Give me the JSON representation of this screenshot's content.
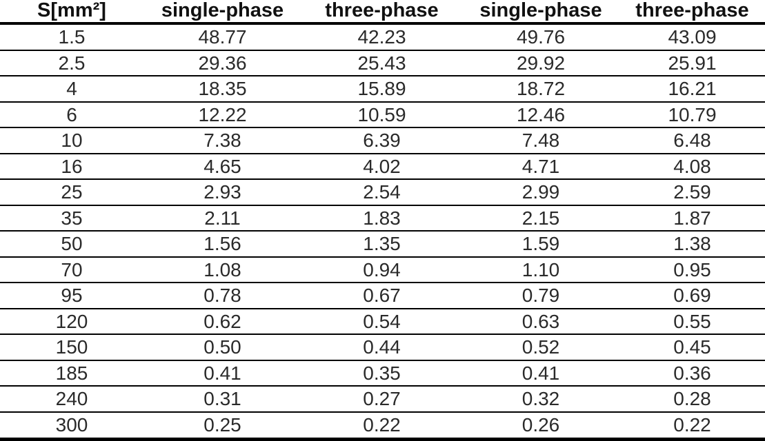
{
  "colors": {
    "background": "#ffffff",
    "text": "#2a2a2a",
    "header_text": "#111111",
    "rule": "#000000"
  },
  "chart_data": {
    "type": "table",
    "columns": [
      "S[mm²]",
      "single-phase",
      "three-phase",
      "single-phase",
      "three-phase"
    ],
    "rows": [
      [
        "1.5",
        "48.77",
        "42.23",
        "49.76",
        "43.09"
      ],
      [
        "2.5",
        "29.36",
        "25.43",
        "29.92",
        "25.91"
      ],
      [
        "4",
        "18.35",
        "15.89",
        "18.72",
        "16.21"
      ],
      [
        "6",
        "12.22",
        "10.59",
        "12.46",
        "10.79"
      ],
      [
        "10",
        "7.38",
        "6.39",
        "7.48",
        "6.48"
      ],
      [
        "16",
        "4.65",
        "4.02",
        "4.71",
        "4.08"
      ],
      [
        "25",
        "2.93",
        "2.54",
        "2.99",
        "2.59"
      ],
      [
        "35",
        "2.11",
        "1.83",
        "2.15",
        "1.87"
      ],
      [
        "50",
        "1.56",
        "1.35",
        "1.59",
        "1.38"
      ],
      [
        "70",
        "1.08",
        "0.94",
        "1.10",
        "0.95"
      ],
      [
        "95",
        "0.78",
        "0.67",
        "0.79",
        "0.69"
      ],
      [
        "120",
        "0.62",
        "0.54",
        "0.63",
        "0.55"
      ],
      [
        "150",
        "0.50",
        "0.44",
        "0.52",
        "0.45"
      ],
      [
        "185",
        "0.41",
        "0.35",
        "0.41",
        "0.36"
      ],
      [
        "240",
        "0.31",
        "0.27",
        "0.32",
        "0.28"
      ],
      [
        "300",
        "0.25",
        "0.22",
        "0.26",
        "0.22"
      ]
    ]
  }
}
